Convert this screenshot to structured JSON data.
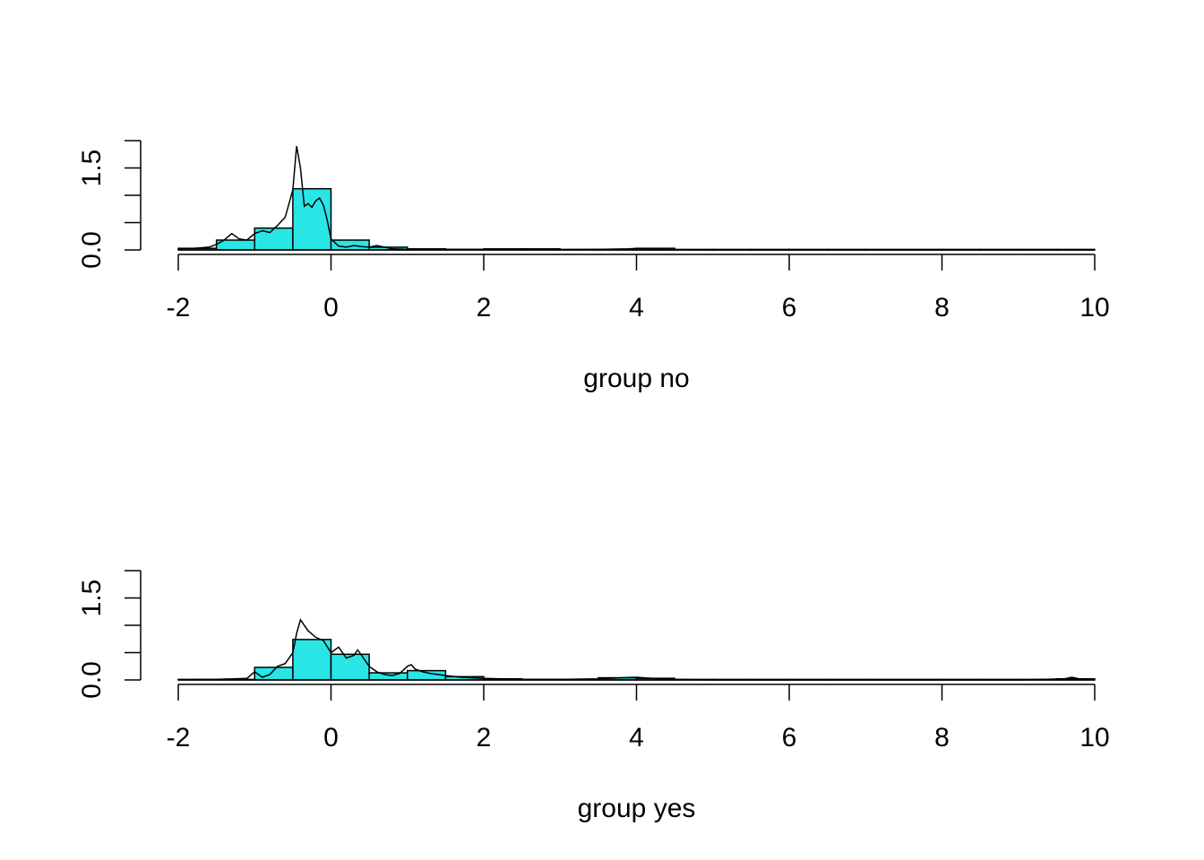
{
  "style": {
    "bar_fill": "#2ae5e5",
    "bar_stroke": "#000000",
    "line_color": "#000000",
    "background": "#ffffff"
  },
  "chart_data": [
    {
      "type": "bar",
      "subtype": "histogram-with-density",
      "xlabel": "group no",
      "ylabel": "",
      "xlim": [
        -2,
        10
      ],
      "ylim": [
        0,
        2
      ],
      "x_ticks": [
        -2,
        0,
        2,
        4,
        6,
        8,
        10
      ],
      "x_tick_labels": [
        "-2",
        "0",
        "2",
        "4",
        "6",
        "8",
        "10"
      ],
      "y_ticks": [
        0,
        0.5,
        1,
        1.5,
        2
      ],
      "y_tick_labels": [
        {
          "value": 0,
          "label": "0.0"
        },
        {
          "value": 1.5,
          "label": "1.5"
        }
      ],
      "bin_width": 0.5,
      "bins": [
        {
          "start": -2,
          "value": 0.03
        },
        {
          "start": -1.5,
          "value": 0.18
        },
        {
          "start": -1,
          "value": 0.4
        },
        {
          "start": -0.5,
          "value": 1.12
        },
        {
          "start": 0,
          "value": 0.18
        },
        {
          "start": 0.5,
          "value": 0.05
        },
        {
          "start": 1,
          "value": 0.02
        },
        {
          "start": 1.5,
          "value": 0.01
        },
        {
          "start": 2,
          "value": 0.02
        },
        {
          "start": 2.5,
          "value": 0.02
        },
        {
          "start": 3,
          "value": 0.01
        },
        {
          "start": 3.5,
          "value": 0.01
        },
        {
          "start": 4,
          "value": 0.03
        },
        {
          "start": 4.5,
          "value": 0
        },
        {
          "start": 5,
          "value": 0
        },
        {
          "start": 5.5,
          "value": 0
        },
        {
          "start": 6,
          "value": 0
        },
        {
          "start": 6.5,
          "value": 0
        },
        {
          "start": 7,
          "value": 0
        },
        {
          "start": 7.5,
          "value": 0
        },
        {
          "start": 8,
          "value": 0
        },
        {
          "start": 8.5,
          "value": 0
        },
        {
          "start": 9,
          "value": 0
        },
        {
          "start": 9.5,
          "value": 0
        }
      ],
      "density": {
        "x": [
          -2,
          -1.8,
          -1.6,
          -1.5,
          -1.4,
          -1.3,
          -1.2,
          -1.1,
          -1,
          -0.9,
          -0.8,
          -0.7,
          -0.6,
          -0.5,
          -0.45,
          -0.4,
          -0.35,
          -0.3,
          -0.25,
          -0.2,
          -0.15,
          -0.1,
          -0.05,
          0,
          0.1,
          0.2,
          0.3,
          0.4,
          0.5,
          0.6,
          0.7,
          0.8,
          1,
          1.5,
          2,
          2.5,
          3,
          3.5,
          3.9,
          4,
          4.1,
          4.5,
          5,
          6,
          7,
          8,
          9,
          10
        ],
        "y": [
          0.02,
          0.03,
          0.05,
          0.1,
          0.18,
          0.3,
          0.2,
          0.18,
          0.3,
          0.35,
          0.32,
          0.45,
          0.6,
          1.1,
          1.9,
          1.5,
          0.8,
          0.85,
          0.78,
          0.9,
          0.95,
          0.82,
          0.55,
          0.2,
          0.07,
          0.05,
          0.08,
          0.06,
          0.05,
          0.08,
          0.05,
          0.02,
          0.01,
          0.01,
          0.01,
          0.01,
          0.005,
          0.01,
          0.02,
          0.03,
          0.02,
          0.005,
          0,
          0,
          0,
          0,
          0,
          0
        ]
      }
    },
    {
      "type": "bar",
      "subtype": "histogram-with-density",
      "xlabel": "group yes",
      "ylabel": "",
      "xlim": [
        -2,
        10
      ],
      "ylim": [
        0,
        2
      ],
      "x_ticks": [
        -2,
        0,
        2,
        4,
        6,
        8,
        10
      ],
      "x_tick_labels": [
        "-2",
        "0",
        "2",
        "4",
        "6",
        "8",
        "10"
      ],
      "y_ticks": [
        0,
        0.5,
        1,
        1.5,
        2
      ],
      "y_tick_labels": [
        {
          "value": 0,
          "label": "0.0"
        },
        {
          "value": 1.5,
          "label": "1.5"
        }
      ],
      "bin_width": 0.5,
      "bins": [
        {
          "start": -2,
          "value": 0.005
        },
        {
          "start": -1.5,
          "value": 0.01
        },
        {
          "start": -1,
          "value": 0.23
        },
        {
          "start": -0.5,
          "value": 0.74
        },
        {
          "start": 0,
          "value": 0.47
        },
        {
          "start": 0.5,
          "value": 0.13
        },
        {
          "start": 1,
          "value": 0.17
        },
        {
          "start": 1.5,
          "value": 0.06
        },
        {
          "start": 2,
          "value": 0.02
        },
        {
          "start": 2.5,
          "value": 0.01
        },
        {
          "start": 3,
          "value": 0.01
        },
        {
          "start": 3.5,
          "value": 0.04
        },
        {
          "start": 4,
          "value": 0.03
        },
        {
          "start": 4.5,
          "value": 0
        },
        {
          "start": 5,
          "value": 0
        },
        {
          "start": 5.5,
          "value": 0
        },
        {
          "start": 6,
          "value": 0
        },
        {
          "start": 6.5,
          "value": 0
        },
        {
          "start": 7,
          "value": 0
        },
        {
          "start": 7.5,
          "value": 0
        },
        {
          "start": 8,
          "value": 0
        },
        {
          "start": 8.5,
          "value": 0
        },
        {
          "start": 9,
          "value": 0
        },
        {
          "start": 9.5,
          "value": 0.02
        }
      ],
      "density": {
        "x": [
          -2,
          -1.5,
          -1.1,
          -1,
          -0.9,
          -0.8,
          -0.7,
          -0.6,
          -0.5,
          -0.45,
          -0.4,
          -0.3,
          -0.2,
          -0.1,
          0,
          0.1,
          0.2,
          0.3,
          0.35,
          0.4,
          0.5,
          0.6,
          0.7,
          0.8,
          0.9,
          1,
          1.05,
          1.1,
          1.2,
          1.3,
          1.5,
          1.7,
          2,
          2.5,
          3,
          3.5,
          3.8,
          4,
          4.2,
          4.5,
          5,
          6,
          7,
          8,
          9,
          9.6,
          9.7,
          9.8,
          10
        ],
        "y": [
          0.005,
          0.01,
          0.03,
          0.15,
          0.05,
          0.1,
          0.25,
          0.3,
          0.5,
          0.85,
          1.1,
          0.9,
          0.78,
          0.72,
          0.5,
          0.6,
          0.4,
          0.45,
          0.55,
          0.45,
          0.25,
          0.15,
          0.1,
          0.08,
          0.12,
          0.25,
          0.28,
          0.2,
          0.15,
          0.12,
          0.08,
          0.05,
          0.03,
          0.01,
          0.01,
          0.02,
          0.04,
          0.05,
          0.03,
          0.01,
          0,
          0,
          0,
          0,
          0,
          0.02,
          0.05,
          0.02,
          0.01
        ]
      }
    }
  ]
}
